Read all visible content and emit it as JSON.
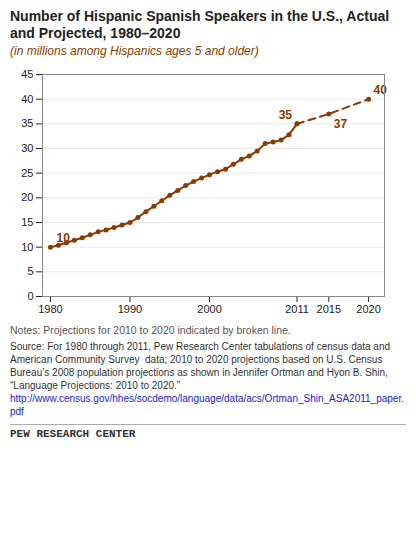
{
  "chart_data": {
    "type": "line",
    "title": "Number of Hispanic Spanish Speakers in the U.S., Actual and Projected, 1980–2020",
    "subtitle": "(in millions among Hispanics ages 5 and older)",
    "x": [
      1980,
      1981,
      1982,
      1983,
      1984,
      1985,
      1986,
      1987,
      1988,
      1989,
      1990,
      1991,
      1992,
      1993,
      1994,
      1995,
      1996,
      1997,
      1998,
      1999,
      2000,
      2001,
      2002,
      2003,
      2004,
      2005,
      2006,
      2007,
      2008,
      2009,
      2010,
      2011,
      2015,
      2020
    ],
    "series": [
      {
        "color": "#8B3A00",
        "line_style": "solid",
        "marker": "circle",
        "values": [
          10.0,
          10.4,
          10.9,
          11.4,
          11.9,
          12.5,
          13.1,
          13.5,
          14.0,
          14.5,
          15.0,
          16.0,
          17.2,
          18.3,
          19.4,
          20.5,
          21.5,
          22.5,
          23.3,
          24.0,
          24.7,
          25.3,
          25.8,
          26.8,
          27.8,
          28.5,
          29.5,
          31.0,
          31.3,
          31.7,
          32.8,
          35.0,
          null,
          null
        ]
      },
      {
        "color": "#8B3A00",
        "line_style": "dashed",
        "marker": "circle",
        "values": [
          null,
          null,
          null,
          null,
          null,
          null,
          null,
          null,
          null,
          null,
          null,
          null,
          null,
          null,
          null,
          null,
          null,
          null,
          null,
          null,
          null,
          null,
          null,
          null,
          null,
          null,
          null,
          null,
          null,
          null,
          null,
          35,
          37,
          40
        ]
      }
    ],
    "xlim": [
      1979,
      2022
    ],
    "ylim": [
      0,
      45
    ],
    "xticks": [
      1980,
      1990,
      2000,
      2011,
      2015,
      2020
    ],
    "yticks": [
      0,
      5,
      10,
      15,
      20,
      25,
      30,
      35,
      40,
      45
    ],
    "grid": true,
    "annotations": [
      {
        "x": 1980,
        "y": 10.0,
        "label": "10"
      },
      {
        "x": 2011,
        "y": 35.0,
        "label": "35"
      },
      {
        "x": 2015,
        "y": 37.0,
        "label": "37"
      },
      {
        "x": 2020,
        "y": 40.0,
        "label": "40"
      }
    ],
    "notes": "Notes: Projections for 2010 to 2020 indicated by broken line.",
    "source": "Source: For 1980 through 2011, Pew Research Center tabulations of census data and American Community Survey  data; 2010 to 2020 projections based on U.S. Census Bureau’s 2008 population projections as shown in Jennifer Ortman and Hyon B. Shin, “Language Projections: 2010 to 2020.”",
    "url": "http://www.census.gov/hhes/socdemo/language/data/acs/Ortman_Shin_ASA2011_paper.pdf",
    "footer": "PEW RESEARCH CENTER"
  }
}
